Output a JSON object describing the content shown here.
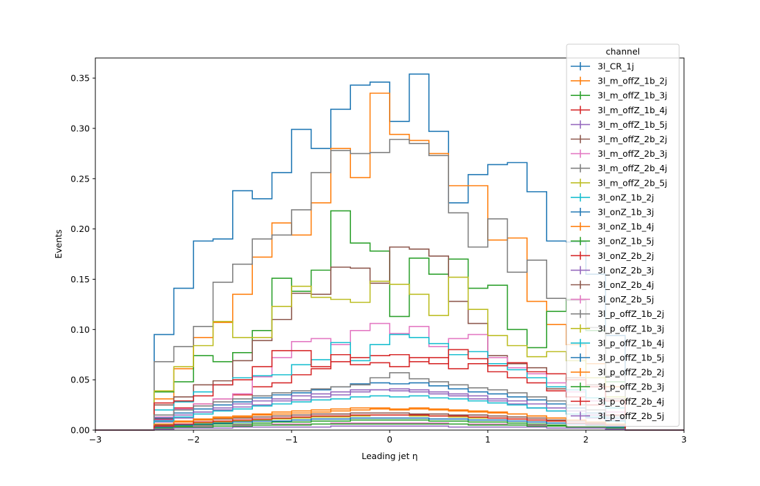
{
  "chart_data": {
    "type": "line",
    "title": "",
    "xlabel": "Leading jet  η",
    "ylabel": "Events",
    "xlim": [
      -3,
      3
    ],
    "ylim": [
      0,
      0.37
    ],
    "xticks": [
      -3,
      -2,
      -1,
      0,
      1,
      2,
      3
    ],
    "xtick_labels": [
      "−3",
      "−2",
      "−1",
      "0",
      "1",
      "2",
      "3"
    ],
    "yticks": [
      0,
      0.05,
      0.1,
      0.15,
      0.2,
      0.25,
      0.3,
      0.35
    ],
    "ytick_labels": [
      "0.00",
      "0.05",
      "0.10",
      "0.15",
      "0.20",
      "0.25",
      "0.30",
      "0.35"
    ],
    "grid": false,
    "legend": {
      "title": "channel",
      "placement": "upper-right"
    },
    "bin_edges": [
      -3.0,
      -2.8,
      -2.6,
      -2.4,
      -2.2,
      -2.0,
      -1.8,
      -1.6,
      -1.4,
      -1.2,
      -1.0,
      -0.8,
      -0.6,
      -0.4,
      -0.2,
      0.0,
      0.2,
      0.4,
      0.6,
      0.8,
      1.0,
      1.2,
      1.4,
      1.6,
      1.8,
      2.0,
      2.2,
      2.4,
      2.6,
      2.8,
      3.0
    ],
    "series": [
      {
        "name": "3l_CR_1j",
        "color": "#1f77b4",
        "values": [
          0,
          0,
          0,
          0.095,
          0.141,
          0.188,
          0.19,
          0.238,
          0.23,
          0.256,
          0.299,
          0.28,
          0.319,
          0.343,
          0.346,
          0.307,
          0.354,
          0.297,
          0.226,
          0.254,
          0.264,
          0.266,
          0.237,
          0.188,
          0.187,
          0.155,
          0.094,
          0,
          0,
          0
        ]
      },
      {
        "name": "3l_m_offZ_1b_2j",
        "color": "#ff7f0e",
        "values": [
          0,
          0,
          0,
          0.031,
          0.061,
          0.092,
          0.107,
          0.135,
          0.172,
          0.206,
          0.194,
          0.226,
          0.28,
          0.251,
          0.335,
          0.294,
          0.288,
          0.275,
          0.243,
          0.243,
          0.189,
          0.191,
          0.128,
          0.105,
          0.085,
          0.066,
          0.043,
          0,
          0,
          0
        ]
      },
      {
        "name": "3l_m_offZ_1b_3j",
        "color": "#2ca02c",
        "values": [
          0,
          0,
          0,
          0.038,
          0.048,
          0.074,
          0.068,
          0.077,
          0.099,
          0.151,
          0.138,
          0.159,
          0.218,
          0.186,
          0.178,
          0.113,
          0.171,
          0.155,
          0.17,
          0.141,
          0.144,
          0.1,
          0.082,
          0.118,
          0.13,
          0.099,
          0.048,
          0,
          0,
          0
        ]
      },
      {
        "name": "3l_m_offZ_1b_4j",
        "color": "#d62728",
        "values": [
          0,
          0,
          0,
          0.011,
          0.022,
          0.026,
          0.031,
          0.035,
          0.043,
          0.047,
          0.055,
          0.061,
          0.068,
          0.072,
          0.074,
          0.075,
          0.068,
          0.072,
          0.061,
          0.066,
          0.058,
          0.052,
          0.047,
          0.039,
          0.033,
          0.025,
          0.015,
          0,
          0,
          0
        ]
      },
      {
        "name": "3l_m_offZ_1b_5j",
        "color": "#9467bd",
        "values": [
          0,
          0,
          0,
          0.008,
          0.012,
          0.018,
          0.02,
          0.023,
          0.025,
          0.029,
          0.03,
          0.033,
          0.035,
          0.038,
          0.04,
          0.041,
          0.038,
          0.036,
          0.034,
          0.031,
          0.029,
          0.026,
          0.022,
          0.019,
          0.016,
          0.012,
          0.009,
          0,
          0,
          0
        ]
      },
      {
        "name": "3l_m_offZ_2b_2j",
        "color": "#8c564b",
        "values": [
          0,
          0,
          0,
          0.025,
          0.033,
          0.045,
          0.049,
          0.069,
          0.089,
          0.11,
          0.136,
          0.135,
          0.162,
          0.161,
          0.146,
          0.182,
          0.18,
          0.173,
          0.128,
          0.106,
          0.074,
          0.066,
          0.062,
          0.041,
          0.052,
          0.045,
          0.031,
          0,
          0,
          0
        ]
      },
      {
        "name": "3l_m_offZ_2b_3j",
        "color": "#e377c2",
        "values": [
          0,
          0,
          0,
          0.013,
          0.021,
          0.026,
          0.031,
          0.036,
          0.053,
          0.072,
          0.088,
          0.091,
          0.085,
          0.099,
          0.106,
          0.096,
          0.103,
          0.083,
          0.091,
          0.095,
          0.072,
          0.062,
          0.056,
          0.047,
          0.038,
          0.029,
          0.018,
          0,
          0,
          0
        ]
      },
      {
        "name": "3l_m_offZ_2b_4j",
        "color": "#7f7f7f",
        "values": [
          0,
          0,
          0,
          0.068,
          0.083,
          0.103,
          0.147,
          0.165,
          0.19,
          0.194,
          0.219,
          0.256,
          0.278,
          0.275,
          0.276,
          0.289,
          0.285,
          0.273,
          0.216,
          0.182,
          0.21,
          0.157,
          0.169,
          0.131,
          0.129,
          0.102,
          0.054,
          0,
          0,
          0
        ]
      },
      {
        "name": "3l_m_offZ_2b_5j",
        "color": "#bcbd22",
        "values": [
          0,
          0,
          0,
          0.039,
          0.063,
          0.084,
          0.108,
          0.092,
          0.092,
          0.123,
          0.143,
          0.132,
          0.13,
          0.127,
          0.148,
          0.145,
          0.135,
          0.114,
          0.152,
          0.12,
          0.094,
          0.084,
          0.073,
          0.078,
          0.069,
          0.052,
          0.033,
          0,
          0,
          0
        ]
      },
      {
        "name": "3l_onZ_1b_2j",
        "color": "#17becf",
        "values": [
          0,
          0,
          0,
          0.02,
          0.028,
          0.038,
          0.045,
          0.052,
          0.054,
          0.055,
          0.065,
          0.07,
          0.087,
          0.069,
          0.085,
          0.095,
          0.092,
          0.086,
          0.075,
          0.078,
          0.066,
          0.06,
          0.052,
          0.043,
          0.04,
          0.032,
          0.022,
          0,
          0,
          0
        ]
      },
      {
        "name": "3l_onZ_1b_3j",
        "color": "#1f77b4",
        "values": [
          0,
          0,
          0,
          0.012,
          0.017,
          0.021,
          0.025,
          0.028,
          0.032,
          0.035,
          0.037,
          0.04,
          0.043,
          0.046,
          0.047,
          0.046,
          0.047,
          0.044,
          0.041,
          0.038,
          0.036,
          0.033,
          0.03,
          0.026,
          0.022,
          0.017,
          0.012,
          0,
          0,
          0
        ]
      },
      {
        "name": "3l_onZ_1b_4j",
        "color": "#ff7f0e",
        "values": [
          0,
          0,
          0,
          0.006,
          0.009,
          0.011,
          0.013,
          0.014,
          0.016,
          0.018,
          0.019,
          0.02,
          0.021,
          0.022,
          0.022,
          0.021,
          0.022,
          0.021,
          0.02,
          0.019,
          0.018,
          0.016,
          0.014,
          0.012,
          0.01,
          0.008,
          0.005,
          0,
          0,
          0
        ]
      },
      {
        "name": "3l_onZ_1b_5j",
        "color": "#2ca02c",
        "values": [
          0,
          0,
          0,
          0.003,
          0.004,
          0.005,
          0.006,
          0.006,
          0.007,
          0.008,
          0.008,
          0.009,
          0.009,
          0.01,
          0.01,
          0.01,
          0.01,
          0.009,
          0.009,
          0.008,
          0.008,
          0.007,
          0.006,
          0.005,
          0.004,
          0.004,
          0.003,
          0,
          0,
          0
        ]
      },
      {
        "name": "3l_onZ_2b_2j",
        "color": "#d62728",
        "values": [
          0,
          0,
          0,
          0.027,
          0.029,
          0.034,
          0.045,
          0.05,
          0.063,
          0.079,
          0.079,
          0.063,
          0.075,
          0.065,
          0.067,
          0.063,
          0.072,
          0.066,
          0.08,
          0.071,
          0.064,
          0.067,
          0.058,
          0.056,
          0.05,
          0.043,
          0.029,
          0,
          0,
          0
        ]
      },
      {
        "name": "3l_onZ_2b_3j",
        "color": "#9467bd",
        "values": [
          0,
          0,
          0,
          0.01,
          0.015,
          0.018,
          0.022,
          0.026,
          0.029,
          0.031,
          0.034,
          0.036,
          0.038,
          0.04,
          0.04,
          0.039,
          0.04,
          0.038,
          0.036,
          0.034,
          0.031,
          0.029,
          0.026,
          0.022,
          0.019,
          0.015,
          0.01,
          0,
          0,
          0
        ]
      },
      {
        "name": "3l_onZ_2b_4j",
        "color": "#8c564b",
        "values": [
          0,
          0,
          0,
          0.005,
          0.008,
          0.01,
          0.011,
          0.012,
          0.013,
          0.014,
          0.015,
          0.016,
          0.016,
          0.017,
          0.017,
          0.017,
          0.016,
          0.016,
          0.015,
          0.015,
          0.014,
          0.013,
          0.012,
          0.01,
          0.009,
          0.007,
          0.005,
          0,
          0,
          0
        ]
      },
      {
        "name": "3l_onZ_2b_5j",
        "color": "#e377c2",
        "values": [
          0,
          0,
          0,
          0.002,
          0.003,
          0.004,
          0.004,
          0.005,
          0.005,
          0.006,
          0.006,
          0.006,
          0.007,
          0.007,
          0.007,
          0.007,
          0.007,
          0.007,
          0.006,
          0.006,
          0.006,
          0.005,
          0.005,
          0.004,
          0.004,
          0.003,
          0.002,
          0,
          0,
          0
        ]
      },
      {
        "name": "3l_p_offZ_1b_2j",
        "color": "#7f7f7f",
        "values": [
          0,
          0,
          0,
          0.015,
          0.02,
          0.024,
          0.028,
          0.031,
          0.034,
          0.037,
          0.039,
          0.041,
          0.043,
          0.045,
          0.052,
          0.057,
          0.051,
          0.048,
          0.045,
          0.042,
          0.04,
          0.037,
          0.033,
          0.029,
          0.025,
          0.02,
          0.014,
          0,
          0,
          0
        ]
      },
      {
        "name": "3l_p_offZ_1b_3j",
        "color": "#bcbd22",
        "values": [
          0,
          0,
          0,
          0.004,
          0.006,
          0.007,
          0.008,
          0.009,
          0.01,
          0.011,
          0.012,
          0.013,
          0.013,
          0.014,
          0.015,
          0.015,
          0.014,
          0.014,
          0.013,
          0.012,
          0.012,
          0.011,
          0.01,
          0.009,
          0.007,
          0.006,
          0.004,
          0,
          0,
          0
        ]
      },
      {
        "name": "3l_p_offZ_1b_4j",
        "color": "#17becf",
        "values": [
          0,
          0,
          0,
          0.009,
          0.013,
          0.016,
          0.019,
          0.021,
          0.024,
          0.026,
          0.028,
          0.03,
          0.031,
          0.033,
          0.034,
          0.033,
          0.034,
          0.032,
          0.031,
          0.029,
          0.027,
          0.025,
          0.022,
          0.019,
          0.016,
          0.013,
          0.009,
          0,
          0,
          0
        ]
      },
      {
        "name": "3l_p_offZ_1b_5j",
        "color": "#1f77b4",
        "values": [
          0,
          0,
          0,
          0.003,
          0.005,
          0.006,
          0.007,
          0.008,
          0.009,
          0.009,
          0.01,
          0.011,
          0.011,
          0.012,
          0.012,
          0.012,
          0.012,
          0.011,
          0.011,
          0.01,
          0.01,
          0.009,
          0.008,
          0.007,
          0.006,
          0.005,
          0.003,
          0,
          0,
          0
        ]
      },
      {
        "name": "3l_p_offZ_2b_2j",
        "color": "#ff7f0e",
        "values": [
          0,
          0,
          0,
          0.006,
          0.008,
          0.01,
          0.012,
          0.013,
          0.015,
          0.016,
          0.017,
          0.018,
          0.019,
          0.02,
          0.021,
          0.02,
          0.021,
          0.02,
          0.019,
          0.018,
          0.017,
          0.016,
          0.014,
          0.012,
          0.01,
          0.008,
          0.006,
          0,
          0,
          0
        ]
      },
      {
        "name": "3l_p_offZ_2b_3j",
        "color": "#2ca02c",
        "values": [
          0,
          0,
          0,
          0.002,
          0.003,
          0.003,
          0.004,
          0.004,
          0.005,
          0.005,
          0.005,
          0.006,
          0.006,
          0.006,
          0.006,
          0.006,
          0.006,
          0.006,
          0.006,
          0.005,
          0.005,
          0.005,
          0.004,
          0.004,
          0.003,
          0.003,
          0.002,
          0,
          0,
          0
        ]
      },
      {
        "name": "3l_p_offZ_2b_4j",
        "color": "#d62728",
        "values": [
          0,
          0,
          0,
          0.004,
          0.006,
          0.008,
          0.009,
          0.01,
          0.011,
          0.012,
          0.013,
          0.014,
          0.014,
          0.015,
          0.015,
          0.015,
          0.015,
          0.014,
          0.014,
          0.013,
          0.012,
          0.011,
          0.01,
          0.009,
          0.007,
          0.006,
          0.004,
          0,
          0,
          0
        ]
      },
      {
        "name": "3l_p_offZ_2b_5j",
        "color": "#9467bd",
        "values": [
          0,
          0,
          0,
          0.001,
          0.002,
          0.002,
          0.002,
          0.003,
          0.003,
          0.003,
          0.003,
          0.003,
          0.004,
          0.004,
          0.004,
          0.004,
          0.004,
          0.004,
          0.003,
          0.003,
          0.003,
          0.003,
          0.003,
          0.002,
          0.002,
          0.002,
          0.001,
          0,
          0,
          0
        ]
      }
    ]
  }
}
